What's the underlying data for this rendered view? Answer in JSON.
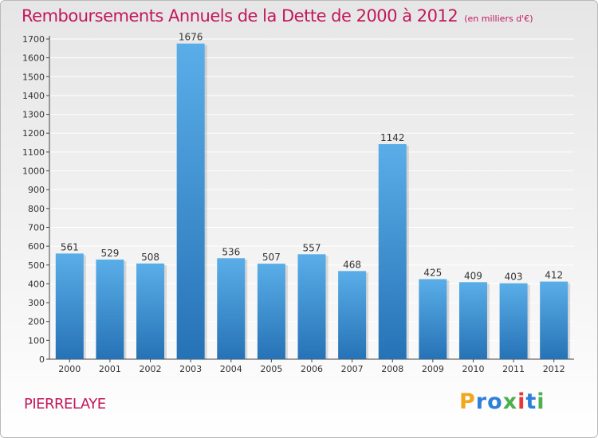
{
  "title": "Remboursements Annuels de la Dette de 2000 à 2012",
  "subtitle": "(en milliers d'€)",
  "place": "PIERRELAYE",
  "logo": {
    "text": "Proxiti",
    "letter_colors": [
      "#f0a81e",
      "#2e7fd9",
      "#2e7fd9",
      "#4caf50",
      "#e53935",
      "#2e7fd9",
      "#4caf50"
    ]
  },
  "colors": {
    "bar_top": "#5aaee8",
    "bar_bottom": "#2672b6",
    "title": "#c2185b",
    "grid": "#ffffff"
  },
  "chart_data": {
    "type": "bar",
    "title": "Remboursements Annuels de la Dette de 2000 à 2012",
    "subtitle": "(en milliers d'€)",
    "categories": [
      "2000",
      "2001",
      "2002",
      "2003",
      "2004",
      "2005",
      "2006",
      "2007",
      "2008",
      "2009",
      "2010",
      "2011",
      "2012"
    ],
    "values": [
      561,
      529,
      508,
      1676,
      536,
      507,
      557,
      468,
      1142,
      425,
      409,
      403,
      412
    ],
    "ylim": [
      0,
      1700
    ],
    "yticks": [
      0,
      100,
      200,
      300,
      400,
      500,
      600,
      700,
      800,
      900,
      1000,
      1100,
      1200,
      1300,
      1400,
      1500,
      1600,
      1700
    ],
    "grid": true,
    "data_labels": true
  }
}
